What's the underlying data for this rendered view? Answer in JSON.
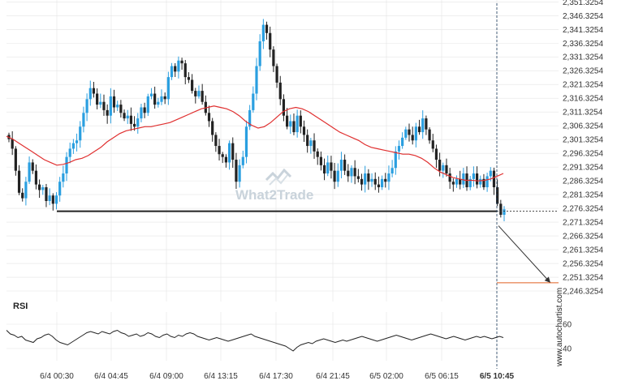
{
  "chart_data": [
    {
      "type": "candlestick",
      "ylim": [
        2242.5,
        2352.0
      ],
      "y_ticks": [
        "2,351.3254",
        "2,346.3254",
        "2,341.3254",
        "2,336.3254",
        "2,331.3254",
        "2,326.3254",
        "2,321.3254",
        "2,316.3254",
        "2,311.3254",
        "2,306.3254",
        "2,301.3254",
        "2,296.3254",
        "2,291.3254",
        "2,286.3254",
        "2,281.3254",
        "2,276.3254",
        "2,271.3254",
        "2,266.3254",
        "2,261.3254",
        "2,256.3254",
        "2,251.3254",
        "2,246.3254"
      ],
      "y_tick_values": [
        2351.3254,
        2346.3254,
        2341.3254,
        2336.3254,
        2331.3254,
        2326.3254,
        2321.3254,
        2316.3254,
        2311.3254,
        2306.3254,
        2301.3254,
        2296.3254,
        2291.3254,
        2286.3254,
        2281.3254,
        2276.3254,
        2271.3254,
        2266.3254,
        2261.3254,
        2256.3254,
        2251.3254,
        2246.3254
      ],
      "x_ticks": [
        "6/4 00:30",
        "6/4 04:45",
        "6/4 09:00",
        "6/4 13:15",
        "6/4 17:30",
        "6/4 21:45",
        "6/5 02:00",
        "6/5 06:15",
        "6/5 10:45"
      ],
      "x_tick_bold_index": 8,
      "close_series": [
        2301.5,
        2298,
        2290,
        2282,
        2280,
        2286,
        2293,
        2290,
        2285,
        2283,
        2284,
        2279,
        2281,
        2278,
        2281,
        2286,
        2289,
        2295,
        2298,
        2300,
        2301,
        2306,
        2311,
        2316,
        2320,
        2318,
        2314,
        2315,
        2312,
        2310,
        2317,
        2313,
        2314,
        2311,
        2309,
        2310,
        2307,
        2306,
        2309,
        2313,
        2311,
        2317,
        2318,
        2314,
        2315,
        2317,
        2316,
        2324,
        2328,
        2326,
        2330,
        2329,
        2324,
        2323,
        2319,
        2317,
        2319,
        2315,
        2311,
        2308,
        2303,
        2299,
        2296,
        2295,
        2293,
        2300,
        2294,
        2286,
        2292,
        2295,
        2306,
        2312,
        2318,
        2328,
        2337,
        2343,
        2340,
        2334,
        2328,
        2322,
        2316,
        2310,
        2306,
        2308,
        2304,
        2310,
        2306,
        2303,
        2299,
        2301,
        2297,
        2295,
        2292,
        2289,
        2293,
        2290,
        2286,
        2290,
        2294,
        2290,
        2288,
        2291,
        2288,
        2287,
        2285,
        2289,
        2286,
        2287,
        2285,
        2284,
        2287,
        2286,
        2289,
        2291,
        2297,
        2299,
        2302,
        2305,
        2303,
        2301,
        2306,
        2304,
        2309,
        2305,
        2301,
        2298,
        2294,
        2290,
        2292,
        2289,
        2286,
        2285,
        2287,
        2285,
        2289,
        2284,
        2287,
        2289,
        2285,
        2287,
        2284,
        2288,
        2290,
        2284,
        2278,
        2274,
        2276
      ],
      "sma_series": [
        2302.5,
        2301.5,
        2300,
        2298.5,
        2297,
        2295.5,
        2294,
        2293,
        2292,
        2292.3,
        2293,
        2294,
        2294.5,
        2295.5,
        2297,
        2298.5,
        2300.5,
        2302,
        2303.5,
        2304.5,
        2305,
        2305.5,
        2306,
        2306,
        2306.5,
        2307,
        2307.5,
        2308.5,
        2309.5,
        2310.5,
        2311.5,
        2312.5,
        2313,
        2313.5,
        2313,
        2312.5,
        2311.5,
        2310,
        2308,
        2306.5,
        2305.5,
        2306,
        2307.5,
        2309.5,
        2311.5,
        2312.5,
        2313,
        2312.5,
        2311.5,
        2310,
        2308.5,
        2307,
        2305.5,
        2304,
        2303,
        2302,
        2301,
        2299.5,
        2298.5,
        2298,
        2297.5,
        2297,
        2296.5,
        2296,
        2296,
        2295.5,
        2294.5,
        2293,
        2291,
        2289.5,
        2288.5,
        2287.5,
        2287,
        2286.5,
        2286.5,
        2286.3,
        2286.5,
        2287,
        2288,
        2289
      ],
      "sma_note": "",
      "support_level": 2275.3,
      "projection": {
        "from_value": 2270.0,
        "to_value": 2249.3
      },
      "target_level": 2249.3,
      "last_price_level": 2275.3,
      "rsi": {
        "title": "RSI",
        "ylim": [
          30,
          70
        ],
        "y_ticks": [
          "60",
          "40"
        ],
        "y_tick_values": [
          60,
          40
        ],
        "values": [
          55,
          52,
          51,
          49,
          50,
          47,
          46,
          45,
          48,
          49,
          51,
          52,
          50,
          47,
          45,
          44,
          43,
          45,
          47,
          49,
          51,
          53,
          54,
          53,
          52,
          54,
          53,
          52,
          54,
          55,
          53,
          52,
          50,
          51,
          52,
          50,
          51,
          53,
          52,
          50,
          49,
          51,
          52,
          50,
          49,
          51,
          50,
          52,
          53,
          52,
          50,
          49,
          48,
          47,
          48,
          49,
          48,
          47,
          46,
          47,
          48,
          49,
          50,
          51,
          52,
          50,
          49,
          48,
          47,
          46,
          45,
          44,
          43,
          42,
          40,
          38,
          41,
          43,
          44,
          45,
          44,
          46,
          47,
          48,
          47,
          46,
          45,
          46,
          47,
          46,
          47,
          48,
          49,
          50,
          49,
          48,
          47,
          46,
          47,
          48,
          49,
          50,
          51,
          50,
          49,
          48,
          47,
          48,
          49,
          50,
          51,
          52,
          51,
          50,
          49,
          48,
          49,
          50,
          49,
          48,
          47,
          48,
          49,
          50,
          49,
          50,
          49,
          48,
          49,
          50,
          49
        ]
      },
      "watermark": "What2Trade",
      "side_label": "www.autochartist.com",
      "colors": {
        "bull": "#2a9fe0",
        "bear": "#222222",
        "sma": "#e03030",
        "target": "#e06020",
        "grid": "#e4e4e4",
        "support": "#222222"
      }
    }
  ]
}
